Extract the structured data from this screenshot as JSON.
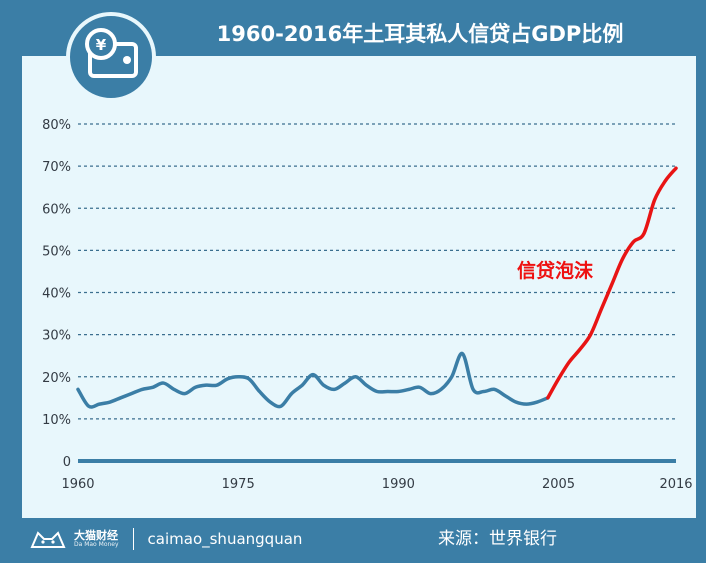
{
  "header": {
    "title": "1960-2016年土耳其私人信贷占GDP比例"
  },
  "footer": {
    "brand_name": "大猫财经",
    "brand_sub": "Da Mao Money",
    "handle": "caimao_shuangquan",
    "source": "来源：世界银行"
  },
  "colors": {
    "frame": "#3b7ea6",
    "panel": "#e8f7fc",
    "series_normal": "#3b7ea6",
    "series_bubble": "#e81414",
    "annotation": "#ee1111"
  },
  "chart_data": {
    "type": "line",
    "title": "1960-2016年土耳其私人信贷占GDP比例",
    "xlabel": "",
    "ylabel": "",
    "x_ticks": [
      "1960",
      "1975",
      "1990",
      "2005",
      "2016"
    ],
    "y_ticks": [
      "0",
      "10%",
      "20%",
      "30%",
      "40%",
      "50%",
      "60%",
      "70%",
      "80%"
    ],
    "xlim": [
      1960,
      2016
    ],
    "ylim": [
      0,
      80
    ],
    "grid": "horizontal dashed",
    "annotation": "信贷泡沫",
    "series": [
      {
        "segment": "normal",
        "x": [
          1960,
          1961,
          1962,
          1963,
          1964,
          1965,
          1966,
          1967,
          1968,
          1969,
          1970,
          1971,
          1972,
          1973,
          1974,
          1975,
          1976,
          1977,
          1978,
          1979,
          1980,
          1981,
          1982,
          1983,
          1984,
          1985,
          1986,
          1987,
          1988,
          1989,
          1990,
          1991,
          1992,
          1993,
          1994,
          1995,
          1996,
          1997,
          1998,
          1999,
          2000,
          2001,
          2002,
          2003,
          2004
        ],
        "y": [
          17,
          13,
          13.5,
          14,
          15,
          16,
          17,
          17.5,
          18.5,
          17,
          16,
          17.5,
          18,
          18,
          19.5,
          20,
          19.5,
          16.5,
          14,
          13,
          16,
          18,
          20.5,
          18,
          17,
          18.5,
          20,
          18,
          16.5,
          16.5,
          16.5,
          17,
          17.5,
          16,
          17,
          20,
          25.5,
          17,
          16.5,
          17,
          15.5,
          14,
          13.5,
          14,
          15
        ]
      },
      {
        "segment": "bubble",
        "x": [
          2004,
          2005,
          2006,
          2007,
          2008,
          2009,
          2010,
          2011,
          2012,
          2013,
          2014,
          2015,
          2016
        ],
        "y": [
          15,
          19.5,
          23.5,
          26.5,
          30,
          36,
          42,
          48,
          52,
          54,
          62,
          66.5,
          69.5
        ]
      }
    ]
  }
}
